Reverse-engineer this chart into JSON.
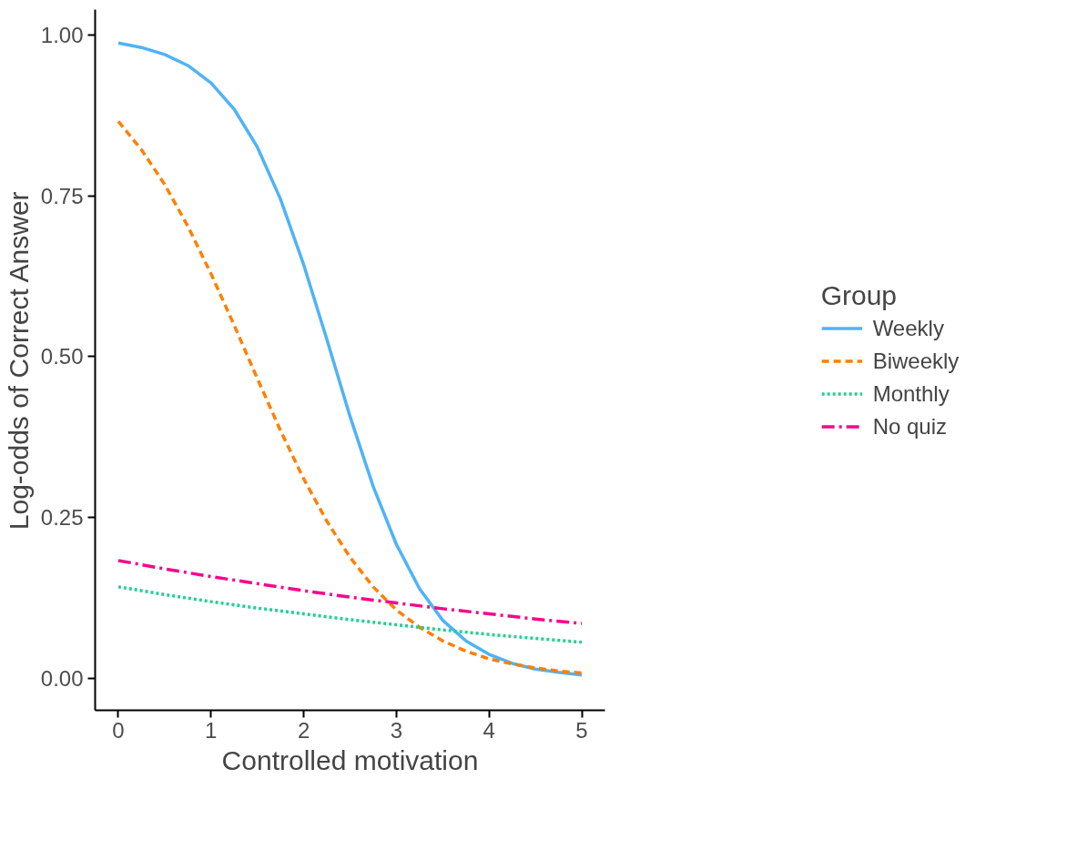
{
  "chart_data": {
    "type": "line",
    "xlabel": "Controlled motivation",
    "ylabel": "Log-odds of Correct Answer",
    "legend_title": "Group",
    "legend": "right",
    "grid": false,
    "xlim": [
      -0.25,
      5.25
    ],
    "ylim": [
      -0.05,
      1.04
    ],
    "xticks": [
      0,
      1,
      2,
      3,
      4,
      5
    ],
    "yticks": [
      {
        "value": 0,
        "label": "0.00"
      },
      {
        "value": 0.25,
        "label": "0.25"
      },
      {
        "value": 0.5,
        "label": "0.50"
      },
      {
        "value": 0.75,
        "label": "0.75"
      },
      {
        "value": 1,
        "label": "1.00"
      }
    ],
    "x": [
      0,
      0.25,
      0.5,
      0.75,
      1,
      1.25,
      1.5,
      1.75,
      2,
      2.25,
      2.5,
      2.75,
      3,
      3.25,
      3.5,
      3.75,
      4,
      4.25,
      4.5,
      4.75,
      5
    ],
    "series": [
      {
        "name": "Weekly",
        "color": "#4fb3f6",
        "line_style": "solid",
        "values": [
          0.988,
          0.981,
          0.97,
          0.953,
          0.926,
          0.885,
          0.826,
          0.745,
          0.643,
          0.527,
          0.407,
          0.298,
          0.208,
          0.139,
          0.09,
          0.058,
          0.037,
          0.023,
          0.014,
          0.009,
          0.005
        ]
      },
      {
        "name": "Biweekly",
        "color": "#ff7f00",
        "line_style": "dashed",
        "values": [
          0.866,
          0.822,
          0.768,
          0.703,
          0.629,
          0.549,
          0.466,
          0.385,
          0.31,
          0.244,
          0.188,
          0.142,
          0.106,
          0.079,
          0.058,
          0.042,
          0.03,
          0.022,
          0.016,
          0.011,
          0.008
        ]
      },
      {
        "name": "Monthly",
        "color": "#20d090",
        "line_style": "dotted",
        "x": [
          0,
          0.5,
          1,
          1.5,
          2,
          2.5,
          3,
          3.5,
          4,
          4.5,
          5
        ],
        "values": [
          0.142,
          0.13,
          0.119,
          0.109,
          0.1,
          0.091,
          0.083,
          0.075,
          0.068,
          0.062,
          0.056
        ]
      },
      {
        "name": "No quiz",
        "color": "#f5078a",
        "line_style": "dashdot",
        "x": [
          0,
          0.5,
          1,
          1.5,
          2,
          2.5,
          3,
          3.5,
          4,
          4.5,
          5
        ],
        "values": [
          0.183,
          0.17,
          0.158,
          0.147,
          0.136,
          0.126,
          0.117,
          0.108,
          0.1,
          0.092,
          0.085
        ]
      }
    ]
  }
}
